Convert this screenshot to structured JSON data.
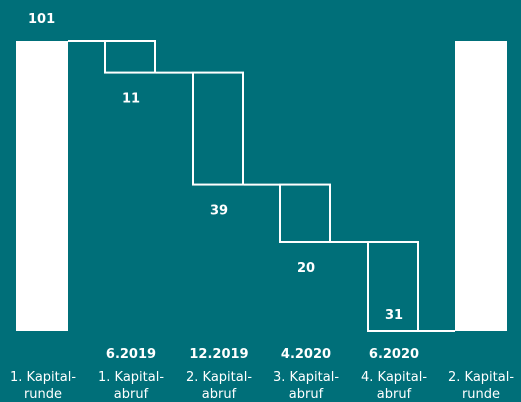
{
  "chart_data": {
    "type": "bar",
    "subtype": "waterfall",
    "title": "",
    "xlabel": "",
    "ylabel": "",
    "ylim": [
      0,
      101
    ],
    "grid": false,
    "legend": "none",
    "colors": {
      "background": "#006f79",
      "bar": "#ffffff"
    },
    "categories": [
      {
        "date": "",
        "lines": [
          "1. Kapital-",
          "runde"
        ]
      },
      {
        "date": "6.2019",
        "lines": [
          "1. Kapital-",
          "abruf"
        ]
      },
      {
        "date": "12.2019",
        "lines": [
          "2. Kapital-",
          "abruf"
        ]
      },
      {
        "date": "4.2020",
        "lines": [
          "3. Kapital-",
          "abruf"
        ]
      },
      {
        "date": "6.2020",
        "lines": [
          "4. Kapital-",
          "abruf"
        ]
      },
      {
        "date": "",
        "lines": [
          "2. Kapital-",
          "runde"
        ]
      }
    ],
    "bars": [
      {
        "kind": "total",
        "value": 101,
        "label": "101",
        "label_shown": true
      },
      {
        "kind": "decrease",
        "value": 11,
        "label": "11"
      },
      {
        "kind": "decrease",
        "value": 39,
        "label": "39"
      },
      {
        "kind": "decrease",
        "value": 20,
        "label": "20"
      },
      {
        "kind": "decrease",
        "value": 31,
        "label": "31"
      },
      {
        "kind": "total",
        "value": 101,
        "label": "",
        "label_shown": false
      }
    ]
  }
}
